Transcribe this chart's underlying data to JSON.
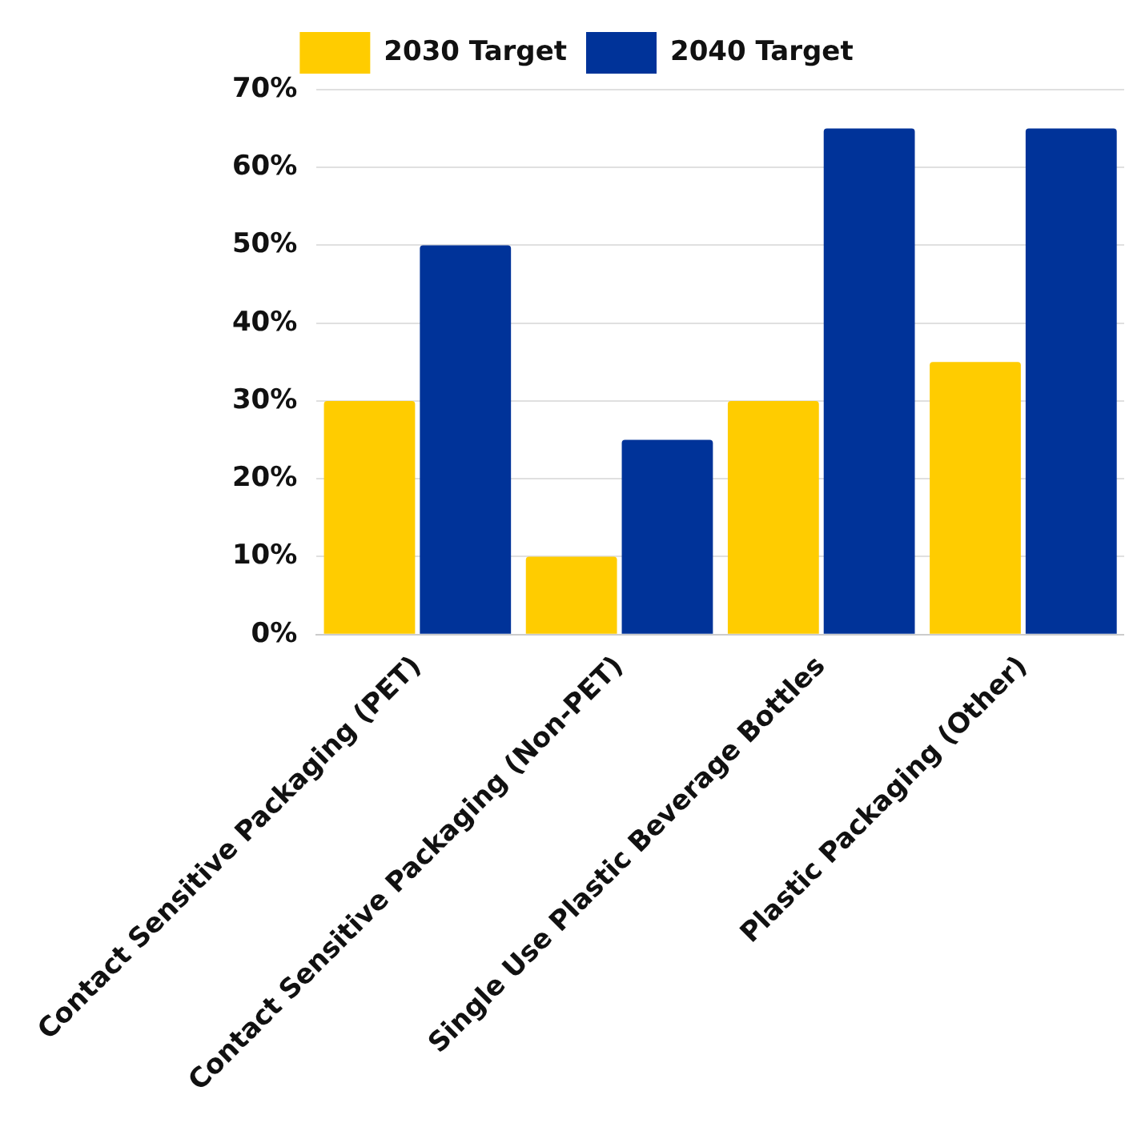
{
  "chart_data": {
    "type": "bar",
    "categories": [
      "Contact Sensitive Packaging (PET)",
      "Contact Sensitive Packaging (Non-PET)",
      "Single Use Plastic Beverage Bottles",
      "Plastic Packaging (Other)"
    ],
    "series": [
      {
        "name": "2030 Target",
        "color": "#ffcc00",
        "values": [
          30,
          10,
          30,
          35
        ]
      },
      {
        "name": "2040 Target",
        "color": "#003399",
        "values": [
          50,
          25,
          65,
          65
        ]
      }
    ],
    "ylim": [
      0,
      70
    ],
    "yticks": [
      {
        "value": 0,
        "label": "0%"
      },
      {
        "value": 10,
        "label": "10%"
      },
      {
        "value": 20,
        "label": "20%"
      },
      {
        "value": 30,
        "label": "30%"
      },
      {
        "value": 40,
        "label": "40%"
      },
      {
        "value": 50,
        "label": "50%"
      },
      {
        "value": 60,
        "label": "60%"
      },
      {
        "value": 70,
        "label": "70%"
      }
    ],
    "grid": "y",
    "legend": "top"
  }
}
